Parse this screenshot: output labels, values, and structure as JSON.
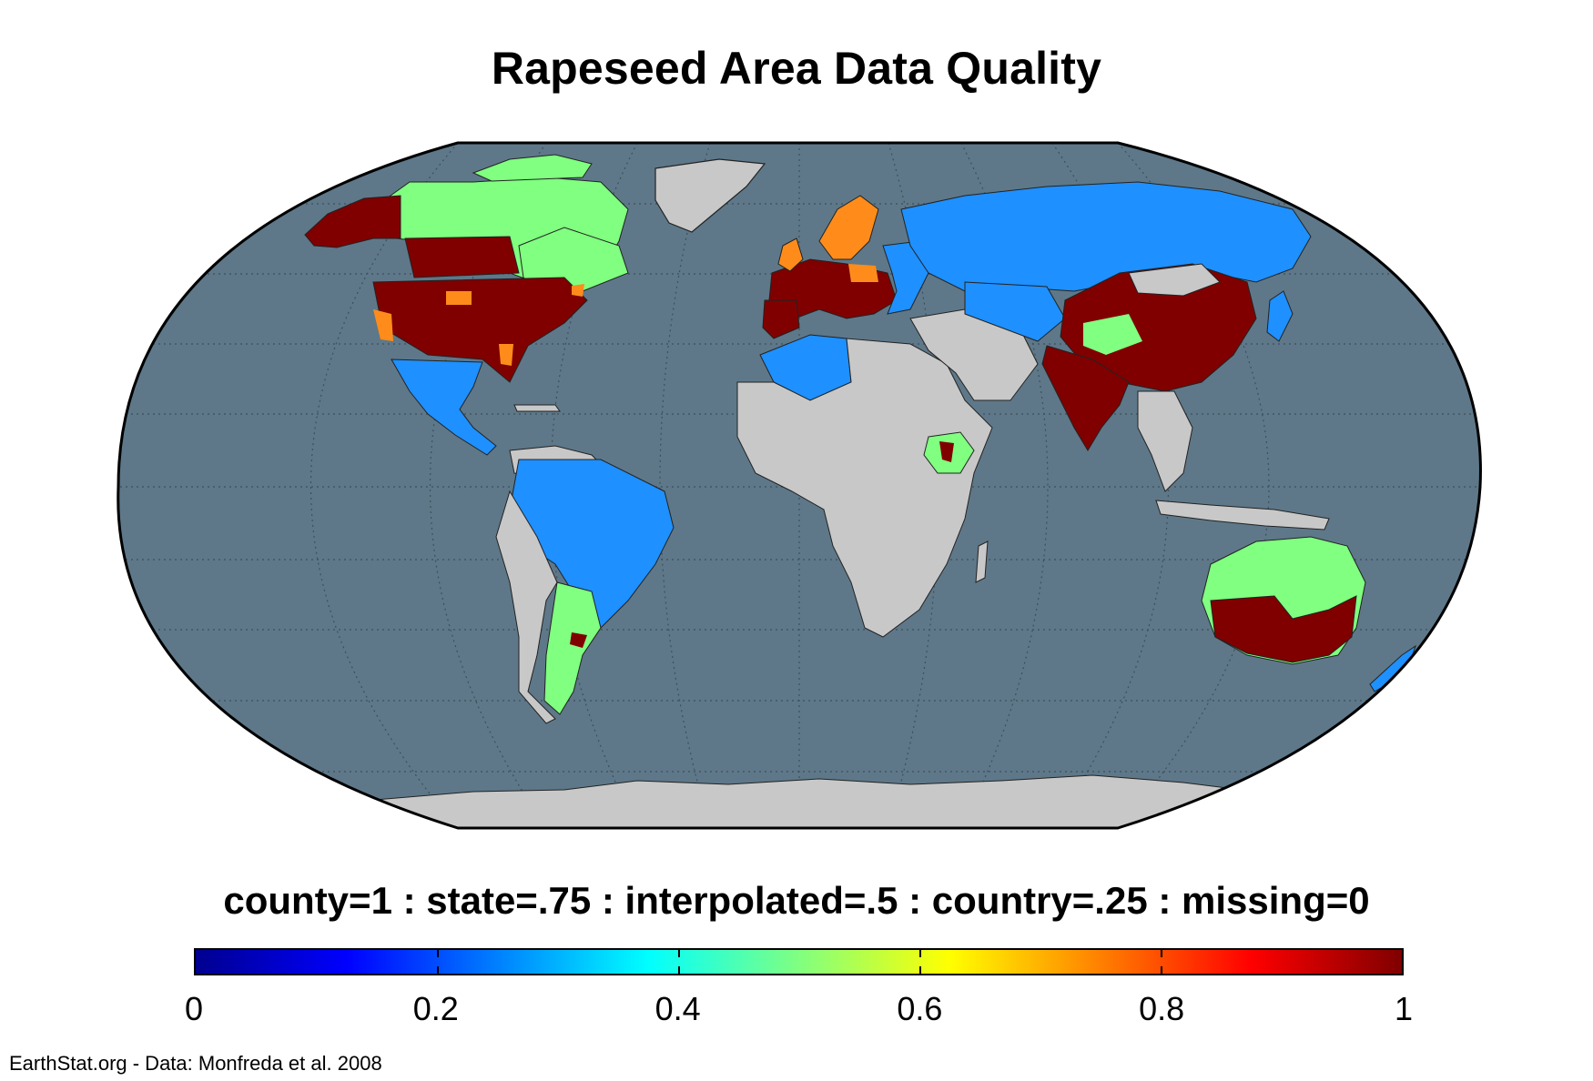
{
  "title": "Rapeseed Area Data Quality",
  "legend": {
    "caption": "county=1 : state=.75 : interpolated=.5 : country=.25 : missing=0",
    "colormap": "jet",
    "range": [
      0,
      1
    ],
    "ticks": [
      "0",
      "0.2",
      "0.4",
      "0.6",
      "0.8",
      "1"
    ],
    "tick_values": [
      0,
      0.2,
      0.4,
      0.6,
      0.8,
      1
    ]
  },
  "credit": "EarthStat.org - Data: Monfreda et al. 2008",
  "map": {
    "projection": "robinson-like",
    "graticule": true,
    "colors": {
      "ocean": "#5e7889",
      "no_data_land": "#c8c8c8",
      "county_1": "#800000",
      "state_075": "#ff8c1a",
      "interpolated_05": "#80ff80",
      "country_025": "#1e90ff"
    },
    "regions": [
      {
        "name": "United States",
        "quality": 1
      },
      {
        "name": "Canada prairies",
        "quality": 1
      },
      {
        "name": "Canada north",
        "quality": 0.5
      },
      {
        "name": "Alaska",
        "quality": 1
      },
      {
        "name": "Mexico",
        "quality": 0.25
      },
      {
        "name": "Brazil",
        "quality": 0.25
      },
      {
        "name": "Argentina",
        "quality": 0.5
      },
      {
        "name": "Western Europe",
        "quality": 1
      },
      {
        "name": "Scandinavia",
        "quality": 0.75
      },
      {
        "name": "Russia",
        "quality": 0.25
      },
      {
        "name": "China",
        "quality": 1
      },
      {
        "name": "India",
        "quality": 1
      },
      {
        "name": "Ethiopia",
        "quality": 0.5
      },
      {
        "name": "Australia",
        "quality": 1
      },
      {
        "name": "North Africa",
        "quality": 0.25
      }
    ]
  }
}
